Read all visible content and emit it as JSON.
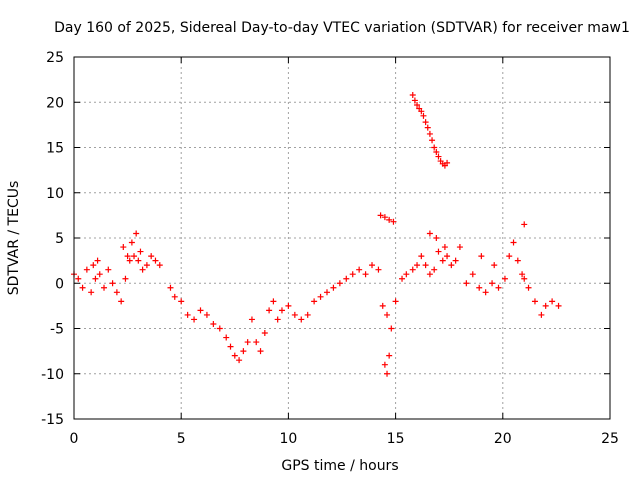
{
  "chart_data": {
    "type": "scatter",
    "title": "Day 160 of 2025, Sidereal Day-to-day VTEC variation (SDTVAR) for receiver maw1",
    "xlabel": "GPS time / hours",
    "ylabel": "SDTVAR / TECUs",
    "xlim": [
      0,
      25
    ],
    "ylim": [
      -15,
      25
    ],
    "x_ticks": [
      0,
      5,
      10,
      15,
      20,
      25
    ],
    "y_ticks": [
      -15,
      -10,
      -5,
      0,
      5,
      10,
      15,
      20,
      25
    ],
    "grid": true,
    "marker": "+",
    "color": "#ff0000",
    "series": [
      {
        "name": "SDTVAR",
        "x": [
          0.0,
          0.2,
          0.4,
          0.6,
          0.8,
          1.0,
          1.2,
          1.4,
          1.6,
          1.8,
          2.0,
          2.2,
          2.4,
          2.6,
          2.8,
          3.0,
          3.2,
          3.4,
          3.6,
          3.8,
          4.0,
          4.5,
          4.7,
          5.0,
          5.3,
          5.6,
          5.9,
          6.2,
          6.5,
          6.8,
          7.1,
          7.3,
          7.5,
          7.7,
          7.9,
          8.1,
          8.3,
          8.5,
          8.7,
          8.9,
          9.1,
          9.3,
          9.5,
          9.7,
          10.0,
          10.3,
          10.6,
          10.9,
          11.2,
          11.5,
          11.8,
          12.1,
          12.4,
          12.7,
          13.0,
          13.3,
          13.6,
          13.9,
          14.2,
          14.4,
          14.6,
          14.8,
          15.0,
          15.3,
          15.5,
          15.8,
          16.0,
          16.2,
          16.4,
          16.6,
          16.8,
          17.0,
          17.2,
          17.4,
          17.6,
          17.8,
          18.0,
          18.3,
          18.6,
          18.9,
          19.2,
          19.5,
          19.8,
          20.1,
          20.3,
          20.5,
          20.7,
          20.9,
          21.0,
          21.2,
          21.5,
          21.8,
          22.0,
          22.3,
          22.6,
          14.3,
          14.5,
          14.7,
          14.9,
          15.8,
          15.9,
          16.0,
          16.1,
          16.2,
          16.3,
          16.4,
          16.5,
          16.6,
          16.7,
          16.8,
          16.9,
          17.0,
          17.1,
          17.2,
          17.3,
          17.4,
          2.7,
          2.9,
          3.1,
          2.5,
          2.3,
          0.9,
          1.1,
          14.5,
          14.6,
          14.7,
          16.6,
          16.9,
          17.3,
          21.0,
          19.0,
          19.6
        ],
        "y": [
          1.0,
          0.5,
          -0.5,
          1.5,
          -1.0,
          0.5,
          1.0,
          -0.5,
          1.5,
          0.0,
          -1.0,
          -2.0,
          0.5,
          2.5,
          3.0,
          2.5,
          1.5,
          2.0,
          3.0,
          2.5,
          2.0,
          -0.5,
          -1.5,
          -2.0,
          -3.5,
          -4.0,
          -3.0,
          -3.5,
          -4.5,
          -5.0,
          -6.0,
          -7.0,
          -8.0,
          -8.5,
          -7.5,
          -6.5,
          -4.0,
          -6.5,
          -7.5,
          -5.5,
          -3.0,
          -2.0,
          -4.0,
          -3.0,
          -2.5,
          -3.5,
          -4.0,
          -3.5,
          -2.0,
          -1.5,
          -1.0,
          -0.5,
          0.0,
          0.5,
          1.0,
          1.5,
          1.0,
          2.0,
          1.5,
          -2.5,
          -3.5,
          -5.0,
          -2.0,
          0.5,
          1.0,
          1.5,
          2.0,
          3.0,
          2.0,
          1.0,
          1.5,
          3.5,
          2.5,
          3.0,
          2.0,
          2.5,
          4.0,
          0.0,
          1.0,
          -0.5,
          -1.0,
          0.0,
          -0.5,
          0.5,
          3.0,
          4.5,
          2.5,
          1.0,
          0.5,
          -0.5,
          -2.0,
          -3.5,
          -2.5,
          -2.0,
          -2.5,
          7.5,
          7.3,
          7.0,
          6.8,
          20.8,
          20.2,
          19.7,
          19.3,
          19.0,
          18.5,
          17.8,
          17.2,
          16.5,
          15.8,
          15.0,
          14.5,
          14.0,
          13.5,
          13.2,
          13.0,
          13.3,
          4.5,
          5.5,
          3.5,
          3.0,
          4.0,
          2.0,
          2.5,
          -9.0,
          -10.0,
          -8.0,
          5.5,
          5.0,
          4.0,
          6.5,
          3.0,
          2.0
        ]
      }
    ]
  }
}
